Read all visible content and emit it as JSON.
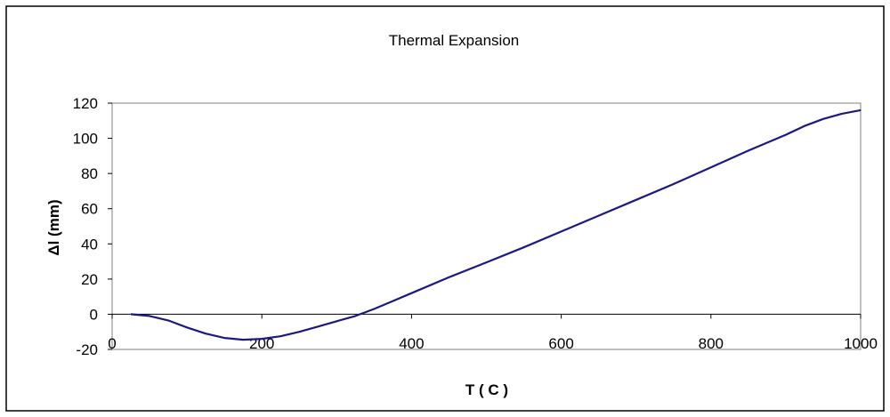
{
  "chart_data": {
    "type": "line",
    "title": "Thermal Expansion",
    "xlabel": "T ( C )",
    "ylabel": "Δl (mm)",
    "xlim": [
      0,
      1000
    ],
    "ylim": [
      -20,
      120
    ],
    "xticks": [
      0,
      200,
      400,
      600,
      800,
      1000
    ],
    "yticks": [
      -20,
      0,
      20,
      40,
      60,
      80,
      100,
      120
    ],
    "grid": false,
    "legend": "none",
    "series": [
      {
        "color": "#1a1a80",
        "x": [
          25,
          50,
          75,
          100,
          125,
          150,
          175,
          200,
          225,
          250,
          275,
          300,
          325,
          350,
          375,
          400,
          450,
          500,
          550,
          600,
          650,
          700,
          750,
          800,
          850,
          900,
          925,
          950,
          975,
          1000
        ],
        "y": [
          0,
          -1,
          -3.5,
          -7.5,
          -11,
          -13.5,
          -14.5,
          -14,
          -12.5,
          -10,
          -7,
          -4,
          -1,
          3,
          7.5,
          12,
          21,
          29.5,
          38,
          47,
          56,
          65,
          74,
          83.5,
          93,
          102,
          107,
          111,
          114,
          116
        ]
      }
    ]
  }
}
